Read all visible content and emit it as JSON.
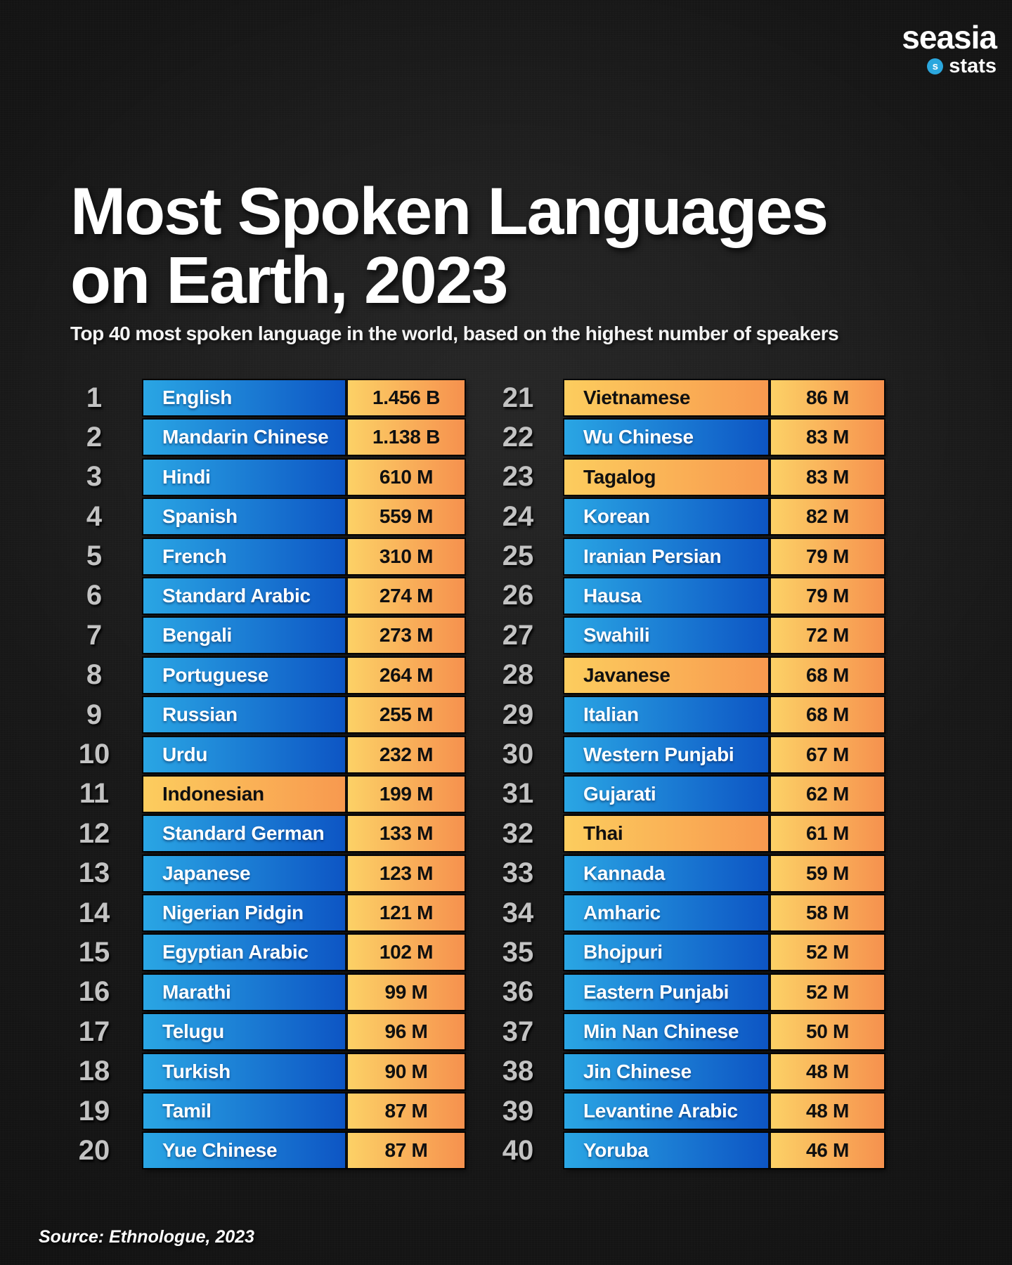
{
  "logo": {
    "brand": "seasia",
    "sub": "stats",
    "icon_letter": "s"
  },
  "header": {
    "title_line1": "Most Spoken Languages",
    "title_line2": "on Earth, 2023",
    "subtitle": "Top 40 most spoken language in the world, based on the highest number of speakers"
  },
  "source": "Source: Ethnologue, 2023",
  "colors": {
    "background": "#0f0f0f",
    "bar_blue_left": "#2aa6e4",
    "bar_blue_right": "#0d55c4",
    "bar_orange_left": "#fcd166",
    "bar_orange_right": "#f6914e",
    "highlight_left": "#fccd5e",
    "highlight_right": "#f8994f",
    "rank_gray": "#c3c3c3",
    "logo_dot_blue": "#2ba7de"
  },
  "chart_data": {
    "type": "table",
    "title": "Most Spoken Languages on Earth, 2023",
    "subtitle": "Top 40 most spoken language in the world, based on the highest number of speakers",
    "columns": [
      "Rank",
      "Language",
      "Speakers"
    ],
    "rows": [
      {
        "rank": 1,
        "language": "English",
        "speakers": "1.456 B",
        "highlight": false
      },
      {
        "rank": 2,
        "language": "Mandarin Chinese",
        "speakers": "1.138 B",
        "highlight": false
      },
      {
        "rank": 3,
        "language": "Hindi",
        "speakers": "610 M",
        "highlight": false
      },
      {
        "rank": 4,
        "language": "Spanish",
        "speakers": "559 M",
        "highlight": false
      },
      {
        "rank": 5,
        "language": "French",
        "speakers": "310 M",
        "highlight": false
      },
      {
        "rank": 6,
        "language": "Standard Arabic",
        "speakers": "274 M",
        "highlight": false
      },
      {
        "rank": 7,
        "language": "Bengali",
        "speakers": "273 M",
        "highlight": false
      },
      {
        "rank": 8,
        "language": "Portuguese",
        "speakers": "264 M",
        "highlight": false
      },
      {
        "rank": 9,
        "language": "Russian",
        "speakers": "255 M",
        "highlight": false
      },
      {
        "rank": 10,
        "language": "Urdu",
        "speakers": "232 M",
        "highlight": false
      },
      {
        "rank": 11,
        "language": "Indonesian",
        "speakers": "199 M",
        "highlight": true
      },
      {
        "rank": 12,
        "language": "Standard German",
        "speakers": "133 M",
        "highlight": false
      },
      {
        "rank": 13,
        "language": "Japanese",
        "speakers": "123 M",
        "highlight": false
      },
      {
        "rank": 14,
        "language": "Nigerian Pidgin",
        "speakers": "121 M",
        "highlight": false
      },
      {
        "rank": 15,
        "language": "Egyptian Arabic",
        "speakers": "102 M",
        "highlight": false
      },
      {
        "rank": 16,
        "language": "Marathi",
        "speakers": "99 M",
        "highlight": false
      },
      {
        "rank": 17,
        "language": "Telugu",
        "speakers": "96 M",
        "highlight": false
      },
      {
        "rank": 18,
        "language": "Turkish",
        "speakers": "90 M",
        "highlight": false
      },
      {
        "rank": 19,
        "language": "Tamil",
        "speakers": "87 M",
        "highlight": false
      },
      {
        "rank": 20,
        "language": "Yue Chinese",
        "speakers": "87 M",
        "highlight": false
      },
      {
        "rank": 21,
        "language": "Vietnamese",
        "speakers": "86 M",
        "highlight": true
      },
      {
        "rank": 22,
        "language": "Wu Chinese",
        "speakers": "83 M",
        "highlight": false
      },
      {
        "rank": 23,
        "language": "Tagalog",
        "speakers": "83 M",
        "highlight": true
      },
      {
        "rank": 24,
        "language": "Korean",
        "speakers": "82 M",
        "highlight": false
      },
      {
        "rank": 25,
        "language": "Iranian Persian",
        "speakers": "79 M",
        "highlight": false
      },
      {
        "rank": 26,
        "language": "Hausa",
        "speakers": "79 M",
        "highlight": false
      },
      {
        "rank": 27,
        "language": "Swahili",
        "speakers": "72 M",
        "highlight": false
      },
      {
        "rank": 28,
        "language": "Javanese",
        "speakers": "68 M",
        "highlight": true
      },
      {
        "rank": 29,
        "language": "Italian",
        "speakers": "68 M",
        "highlight": false
      },
      {
        "rank": 30,
        "language": "Western Punjabi",
        "speakers": "67 M",
        "highlight": false
      },
      {
        "rank": 31,
        "language": "Gujarati",
        "speakers": "62 M",
        "highlight": false
      },
      {
        "rank": 32,
        "language": "Thai",
        "speakers": "61 M",
        "highlight": true
      },
      {
        "rank": 33,
        "language": "Kannada",
        "speakers": "59 M",
        "highlight": false
      },
      {
        "rank": 34,
        "language": "Amharic",
        "speakers": "58 M",
        "highlight": false
      },
      {
        "rank": 35,
        "language": "Bhojpuri",
        "speakers": "52 M",
        "highlight": false
      },
      {
        "rank": 36,
        "language": "Eastern Punjabi",
        "speakers": "52 M",
        "highlight": false
      },
      {
        "rank": 37,
        "language": "Min Nan Chinese",
        "speakers": "50 M",
        "highlight": false
      },
      {
        "rank": 38,
        "language": "Jin Chinese",
        "speakers": "48 M",
        "highlight": false
      },
      {
        "rank": 39,
        "language": "Levantine Arabic",
        "speakers": "48 M",
        "highlight": false
      },
      {
        "rank": 40,
        "language": "Yoruba",
        "speakers": "46 M",
        "highlight": false
      }
    ]
  }
}
